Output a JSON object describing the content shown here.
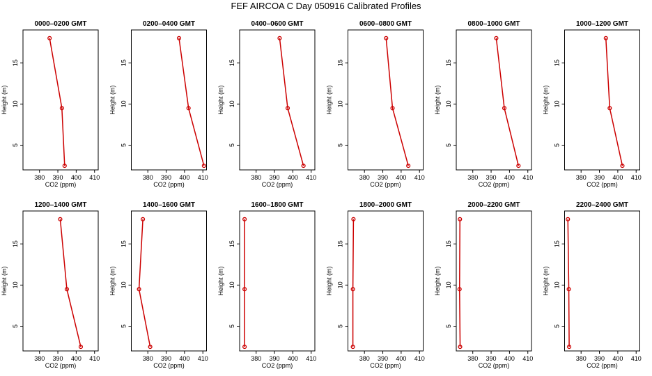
{
  "title": "FEF AIRCOA C  Day 050916  Calibrated Profiles",
  "chart_data": {
    "type": "line",
    "title": "FEF AIRCOA C  Day 050916  Calibrated Profiles",
    "xlabel": "CO2 (ppm)",
    "ylabel": "Height (m)",
    "xlim": [
      371,
      412
    ],
    "ylim": [
      2,
      19
    ],
    "xticks": [
      380,
      390,
      400,
      410
    ],
    "yticks": [
      5,
      10,
      15
    ],
    "grid": false,
    "heights": [
      18,
      9.5,
      2.5
    ],
    "line_color": "#cc0000",
    "panels": [
      {
        "title": "0000–0200 GMT",
        "co2": [
          385.5,
          392.2,
          393.7
        ]
      },
      {
        "title": "0200–0400 GMT",
        "co2": [
          397.0,
          402.2,
          410.6
        ]
      },
      {
        "title": "0400–0600 GMT",
        "co2": [
          392.8,
          397.2,
          405.8
        ]
      },
      {
        "title": "0600–0800 GMT",
        "co2": [
          391.8,
          395.3,
          403.9
        ]
      },
      {
        "title": "0800–1000 GMT",
        "co2": [
          392.8,
          397.2,
          404.9
        ]
      },
      {
        "title": "1000–1200 GMT",
        "co2": [
          393.5,
          395.6,
          402.5
        ]
      },
      {
        "title": "1200–1400 GMT",
        "co2": [
          391.3,
          394.9,
          402.5
        ]
      },
      {
        "title": "1400–1600 GMT",
        "co2": [
          377.3,
          375.2,
          381.3
        ]
      },
      {
        "title": "1600–1800 GMT",
        "co2": [
          373.7,
          373.7,
          373.7
        ]
      },
      {
        "title": "1800–2000 GMT",
        "co2": [
          374.0,
          373.7,
          373.7
        ]
      },
      {
        "title": "2000–2200 GMT",
        "co2": [
          373.0,
          372.8,
          373.1
        ]
      },
      {
        "title": "2200–2400 GMT",
        "co2": [
          372.8,
          373.3,
          373.5
        ]
      }
    ]
  }
}
